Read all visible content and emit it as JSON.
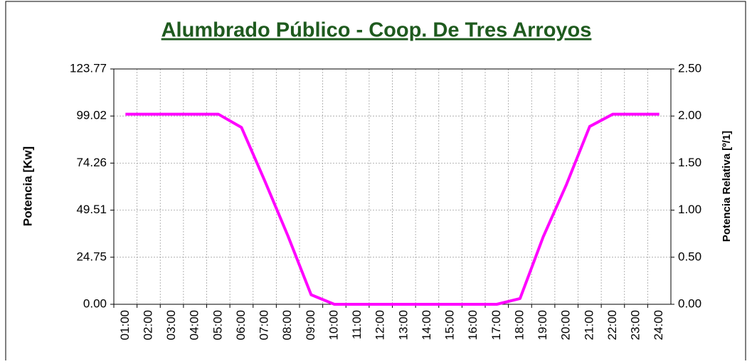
{
  "chart_data": {
    "type": "line",
    "title": "Alumbrado Público - Coop. De Tres Arroyos",
    "ylabel": "Potencia [Kw]",
    "y2label": "Potencia Relativa [º/1]",
    "categories": [
      "01:00",
      "02:00",
      "03:00",
      "04:00",
      "05:00",
      "06:00",
      "07:00",
      "08:00",
      "09:00",
      "10:00",
      "11:00",
      "12:00",
      "13:00",
      "14:00",
      "15:00",
      "16:00",
      "17:00",
      "18:00",
      "19:00",
      "20:00",
      "21:00",
      "22:00",
      "23:00",
      "24:00"
    ],
    "series": [
      {
        "color": "#ff00ff",
        "values": [
          100,
          100,
          100,
          100,
          100,
          93,
          65,
          36,
          5,
          0,
          0,
          0,
          0,
          0,
          0,
          0,
          0,
          3,
          35.5,
          63,
          93.5,
          100,
          100,
          100
        ]
      }
    ],
    "ylim": [
      0,
      123.77
    ],
    "yticks": [
      {
        "value": 0,
        "label": "0.00"
      },
      {
        "value": 24.75,
        "label": "24.75"
      },
      {
        "value": 49.51,
        "label": "49.51"
      },
      {
        "value": 74.26,
        "label": "74.26"
      },
      {
        "value": 99.02,
        "label": "99.02"
      },
      {
        "value": 123.77,
        "label": "123.77"
      }
    ],
    "y2lim": [
      0,
      2.5
    ],
    "y2ticks": [
      {
        "value": 0,
        "label": "0.00"
      },
      {
        "value": 0.5,
        "label": "0.50"
      },
      {
        "value": 1,
        "label": "1.00"
      },
      {
        "value": 1.5,
        "label": "1.50"
      },
      {
        "value": 2,
        "label": "2.00"
      },
      {
        "value": 2.5,
        "label": "2.50"
      }
    ],
    "grid": true
  }
}
